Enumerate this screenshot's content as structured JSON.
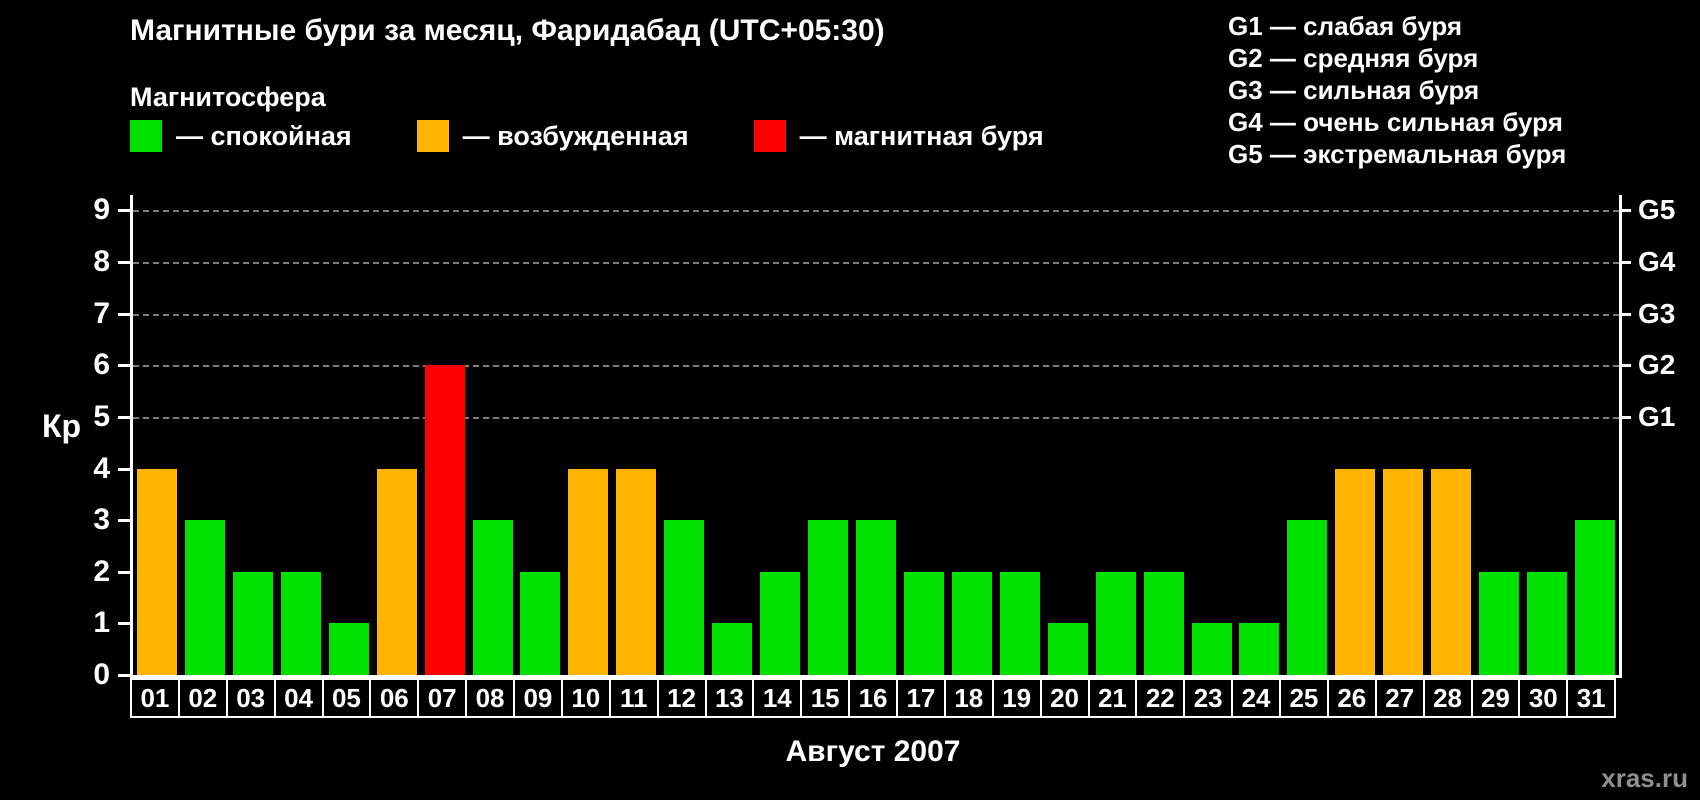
{
  "title": "Магнитные бури за месяц, Фаридабад (UTC+05:30)",
  "legend": {
    "heading": "Магнитосфера",
    "items": [
      {
        "name": "quiet",
        "label": "— спокойная",
        "color": "#00e100"
      },
      {
        "name": "excited",
        "label": "— возбужденная",
        "color": "#ffb400"
      },
      {
        "name": "storm",
        "label": "— магнитная буря",
        "color": "#ff0000"
      }
    ]
  },
  "g_scale_legend": [
    {
      "label": "G1 — слабая буря"
    },
    {
      "label": "G2 — средняя буря"
    },
    {
      "label": "G3 — сильная буря"
    },
    {
      "label": "G4 — очень сильная буря"
    },
    {
      "label": "G5 — экстремальная буря"
    }
  ],
  "watermark": "xras.ru",
  "chart_data": {
    "type": "bar",
    "title": "Магнитные бури за месяц, Фаридабад (UTC+05:30)",
    "xlabel": "Август 2007",
    "ylabel": "Кр",
    "ylim": [
      0,
      9.3
    ],
    "yticks": [
      0,
      1,
      2,
      3,
      4,
      5,
      6,
      7,
      8,
      9
    ],
    "gridlines_at": [
      5,
      6,
      7,
      8,
      9
    ],
    "right_axis_ticks": [
      {
        "label": "G1",
        "value": 5
      },
      {
        "label": "G2",
        "value": 6
      },
      {
        "label": "G3",
        "value": 7
      },
      {
        "label": "G4",
        "value": 8
      },
      {
        "label": "G5",
        "value": 9
      }
    ],
    "categories": [
      "01",
      "02",
      "03",
      "04",
      "05",
      "06",
      "07",
      "08",
      "09",
      "10",
      "11",
      "12",
      "13",
      "14",
      "15",
      "16",
      "17",
      "18",
      "19",
      "20",
      "21",
      "22",
      "23",
      "24",
      "25",
      "26",
      "27",
      "28",
      "29",
      "30",
      "31"
    ],
    "values": [
      4,
      3,
      2,
      2,
      1,
      4,
      6,
      3,
      2,
      4,
      4,
      3,
      1,
      2,
      3,
      3,
      2,
      2,
      2,
      1,
      2,
      2,
      1,
      1,
      3,
      4,
      4,
      4,
      2,
      2,
      3
    ],
    "color_thresholds": {
      "quiet_max": 3,
      "excited_max": 4
    },
    "colors": {
      "quiet": "#00e100",
      "excited": "#ffb400",
      "storm": "#ff0000"
    },
    "grid": "dashed-horizontal",
    "legend_position": "top-left"
  }
}
